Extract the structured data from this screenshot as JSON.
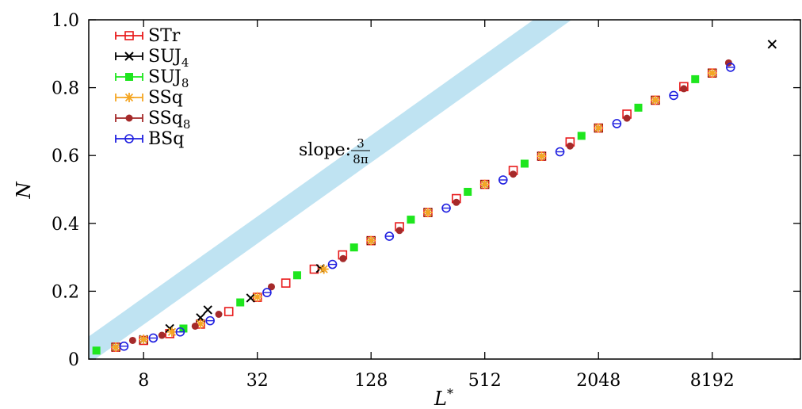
{
  "chart_data": {
    "type": "scatter",
    "title": "",
    "xlabel": "L*",
    "ylabel": "N",
    "x_scale": "log2",
    "xlim": [
      4.1,
      24000
    ],
    "ylim": [
      0,
      1.0
    ],
    "x_ticks": [
      8,
      32,
      128,
      512,
      2048,
      8192
    ],
    "x_tick_labels": [
      "8",
      "32",
      "128",
      "512",
      "2048",
      "8192"
    ],
    "y_ticks": [
      0,
      0.2,
      0.4,
      0.6,
      0.8,
      1.0
    ],
    "y_tick_labels": [
      "0",
      "0.2",
      "0.4",
      "0.6",
      "0.8",
      "1.0"
    ],
    "legend_position": "top-left",
    "annotation": {
      "prefix": "slope:",
      "numerator": "3",
      "denominator": "8π",
      "at": [
        110,
        0.6
      ]
    },
    "band": {
      "color": "#bfe3f2",
      "slope": 0.11937,
      "intercept": -0.2165,
      "half_width": 0.04
    },
    "series": [
      {
        "name": "STr",
        "sub": "",
        "marker": "square-open",
        "color": "#e8191a",
        "x": [
          5.7,
          8,
          11,
          16,
          22.6,
          32,
          45.3,
          64,
          90.5,
          128,
          181,
          256,
          362,
          512,
          724,
          1024,
          1448,
          2048,
          2896,
          4096,
          5793,
          8192
        ],
        "y": [
          0.035,
          0.055,
          0.075,
          0.103,
          0.14,
          0.182,
          0.224,
          0.265,
          0.307,
          0.349,
          0.39,
          0.432,
          0.473,
          0.515,
          0.556,
          0.598,
          0.64,
          0.681,
          0.722,
          0.763,
          0.803,
          0.843
        ]
      },
      {
        "name": "SUJ",
        "sub": "4",
        "marker": "cross",
        "color": "#000000",
        "x": [
          5.7,
          8,
          11,
          16,
          17.5,
          29.5,
          69,
          128,
          256,
          512,
          1024,
          2048,
          4096,
          8192,
          17000
        ],
        "y": [
          0.035,
          0.058,
          0.09,
          0.122,
          0.145,
          0.18,
          0.267,
          0.349,
          0.432,
          0.515,
          0.598,
          0.681,
          0.763,
          0.843,
          0.928
        ]
      },
      {
        "name": "SUJ",
        "sub": "8",
        "marker": "square-filled",
        "color": "#1ee61e",
        "x": [
          4.5,
          13,
          26,
          52,
          104,
          208,
          416,
          832,
          1664,
          3328,
          6656
        ],
        "y": [
          0.025,
          0.09,
          0.167,
          0.247,
          0.329,
          0.411,
          0.493,
          0.576,
          0.658,
          0.741,
          0.825
        ]
      },
      {
        "name": "SSq",
        "sub": "",
        "marker": "star",
        "color": "#f5a623",
        "x": [
          5.7,
          8,
          11.3,
          16,
          32,
          72,
          128,
          256,
          512,
          1024,
          2048,
          4096,
          8192
        ],
        "y": [
          0.035,
          0.058,
          0.08,
          0.104,
          0.183,
          0.265,
          0.349,
          0.432,
          0.515,
          0.598,
          0.681,
          0.763,
          0.843
        ]
      },
      {
        "name": "SSq",
        "sub": "8",
        "marker": "circle-filled",
        "color": "#a52a2a",
        "x": [
          7,
          10,
          15,
          20,
          38,
          91,
          181,
          362,
          724,
          1448,
          2896,
          5793,
          10000
        ],
        "y": [
          0.055,
          0.07,
          0.097,
          0.132,
          0.213,
          0.296,
          0.379,
          0.462,
          0.545,
          0.628,
          0.71,
          0.797,
          0.873
        ]
      },
      {
        "name": "BSq",
        "sub": "",
        "marker": "circle-open",
        "color": "#1f1fe0",
        "x": [
          6.3,
          9,
          12.5,
          18,
          36,
          80,
          160,
          320,
          640,
          1280,
          2560,
          5120,
          10240
        ],
        "y": [
          0.038,
          0.062,
          0.08,
          0.113,
          0.196,
          0.279,
          0.362,
          0.445,
          0.528,
          0.611,
          0.694,
          0.777,
          0.86
        ]
      }
    ]
  }
}
